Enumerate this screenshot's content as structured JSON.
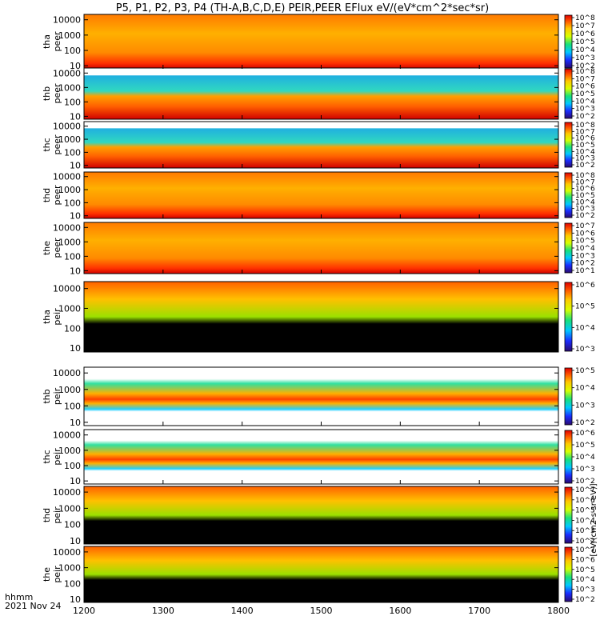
{
  "chart_data": {
    "type": "heatmap",
    "title": "P5, P1, P2, P3, P4 (TH-A,B,C,D,E) PEIR,PEER EFlux eV/(eV*cm^2*sec*sr)",
    "x_label_line1": "hhmm",
    "x_label_line2": "2021 Nov 24",
    "x_ticks": [
      "1200",
      "1300",
      "1400",
      "1500",
      "1600",
      "1700",
      "1800"
    ],
    "x_range_hhmm": [
      1200,
      1800
    ],
    "y_scale": "log",
    "colorbar_label": "[eV/(cm2-s-sr-eV)]",
    "panels": [
      {
        "probe": "tha",
        "species": "peer",
        "label": "tha peer",
        "y_ticks": [
          "10",
          "100",
          "1000",
          "10000"
        ],
        "cb_ticks": [
          "10^2",
          "10^3",
          "10^4",
          "10^5",
          "10^6",
          "10^7",
          "10^8"
        ]
      },
      {
        "probe": "thb",
        "species": "peer",
        "label": "thb peer",
        "y_ticks": [
          "10",
          "100",
          "1000",
          "10000"
        ],
        "cb_ticks": [
          "10^2",
          "10^3",
          "10^4",
          "10^5",
          "10^6",
          "10^7",
          "10^8"
        ]
      },
      {
        "probe": "thc",
        "species": "peer",
        "label": "thc peer",
        "y_ticks": [
          "10",
          "100",
          "1000",
          "10000"
        ],
        "cb_ticks": [
          "10^2",
          "10^3",
          "10^4",
          "10^5",
          "10^6",
          "10^7",
          "10^8"
        ]
      },
      {
        "probe": "thd",
        "species": "peer",
        "label": "thd peer",
        "y_ticks": [
          "10",
          "100",
          "1000",
          "10000"
        ],
        "cb_ticks": [
          "10^2",
          "10^3",
          "10^4",
          "10^5",
          "10^6",
          "10^7",
          "10^8"
        ]
      },
      {
        "probe": "the",
        "species": "peer",
        "label": "the peer",
        "y_ticks": [
          "10",
          "100",
          "1000",
          "10000"
        ],
        "cb_ticks": [
          "10^1",
          "10^2",
          "10^3",
          "10^4",
          "10^5",
          "10^6",
          "10^7"
        ]
      },
      {
        "probe": "tha",
        "species": "peir",
        "label": "tha peir",
        "y_ticks": [
          "10",
          "100",
          "1000",
          "10000"
        ],
        "cb_ticks": [
          "10^3",
          "10^4",
          "10^5",
          "10^6"
        ]
      },
      {
        "probe": "thb",
        "species": "peir",
        "label": "thb peir",
        "y_ticks": [
          "10",
          "100",
          "1000",
          "10000"
        ],
        "cb_ticks": [
          "10^2",
          "10^3",
          "10^4",
          "10^5"
        ]
      },
      {
        "probe": "thc",
        "species": "peir",
        "label": "thc peir",
        "y_ticks": [
          "10",
          "100",
          "1000",
          "10000"
        ],
        "cb_ticks": [
          "10^2",
          "10^3",
          "10^4",
          "10^5",
          "10^6"
        ]
      },
      {
        "probe": "thd",
        "species": "peir",
        "label": "thd peir",
        "y_ticks": [
          "10",
          "100",
          "1000",
          "10000"
        ],
        "cb_ticks": [
          "10^2",
          "10^3",
          "10^4",
          "10^5",
          "10^6",
          "10^7"
        ]
      },
      {
        "probe": "the",
        "species": "peir",
        "label": "the peir",
        "y_ticks": [
          "10",
          "100",
          "1000",
          "10000"
        ],
        "cb_ticks": [
          "10^2",
          "10^3",
          "10^4",
          "10^5",
          "10^6",
          "10^7"
        ]
      }
    ]
  }
}
